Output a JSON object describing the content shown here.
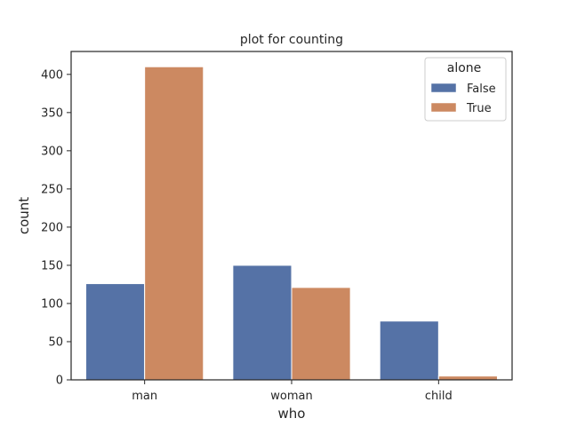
{
  "chart_data": {
    "type": "bar",
    "title": "plot for counting",
    "xlabel": "who",
    "ylabel": "count",
    "categories": [
      "man",
      "woman",
      "child"
    ],
    "ylim": [
      0,
      430
    ],
    "yticks": [
      0,
      50,
      100,
      150,
      200,
      250,
      300,
      350,
      400
    ],
    "grid": false,
    "legend": {
      "title": "alone",
      "position": "top-right"
    },
    "series": [
      {
        "name": "False",
        "values": [
          126,
          150,
          77
        ],
        "color": "#5572a6"
      },
      {
        "name": "True",
        "values": [
          410,
          121,
          5
        ],
        "color": "#cc8961"
      }
    ]
  }
}
